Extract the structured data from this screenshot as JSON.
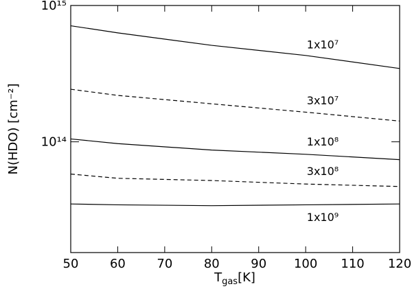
{
  "chart_data": {
    "type": "line",
    "log_y": true,
    "xlabel": {
      "main": "T",
      "sub": "gas",
      "unit": "[K]"
    },
    "ylabel": "N(HDO) [cm⁻²]",
    "x": [
      50,
      60,
      80,
      100,
      120
    ],
    "xlim": [
      50,
      120
    ],
    "xticks": [
      50,
      60,
      70,
      80,
      90,
      100,
      110,
      120
    ],
    "ylim": [
      15400000000000.0,
      1000000000000000.0
    ],
    "yticks": [
      {
        "value": 100000000000000.0,
        "label": "10¹⁴"
      },
      {
        "value": 1000000000000000.0,
        "label": "10¹⁵"
      }
    ],
    "series": [
      {
        "name": "1x10⁷",
        "color": "#000000",
        "dashed": false,
        "values": [
          710000000000000.0,
          630000000000000.0,
          510000000000000.0,
          430000000000000.0,
          345000000000000.0
        ]
      },
      {
        "name": "3x10⁷",
        "color": "#000000",
        "dashed": true,
        "values": [
          243000000000000.0,
          219000000000000.0,
          190000000000000.0,
          165000000000000.0,
          142000000000000.0
        ]
      },
      {
        "name": "1x10⁸",
        "color": "#000000",
        "dashed": false,
        "values": [
          105000000000000.0,
          97000000000000.0,
          87000000000000.0,
          81000000000000.0,
          74000000000000.0
        ]
      },
      {
        "name": "3x10⁸",
        "color": "#000000",
        "dashed": true,
        "values": [
          58000000000000.0,
          54000000000000.0,
          52000000000000.0,
          49000000000000.0,
          47000000000000.0
        ]
      },
      {
        "name": "1x10⁹",
        "color": "#000000",
        "dashed": false,
        "values": [
          35000000000000.0,
          34500000000000.0,
          34000000000000.0,
          34500000000000.0,
          35000000000000.0
        ]
      }
    ]
  }
}
